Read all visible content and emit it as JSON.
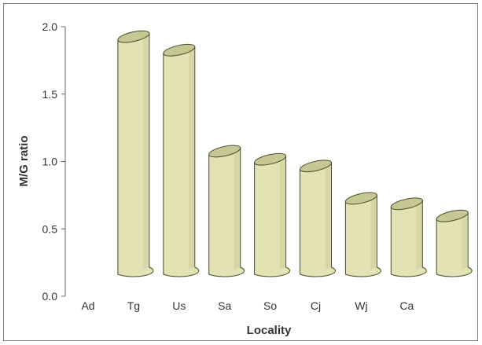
{
  "chart_data": {
    "type": "bar",
    "title": "",
    "xlabel": "Locality",
    "ylabel": "M/G ratio",
    "categories": [
      "Ad",
      "Tg",
      "Us",
      "Sa",
      "So",
      "Cj",
      "Wj",
      "Ca",
      ""
    ],
    "values": [
      null,
      1.9,
      1.8,
      1.05,
      0.99,
      0.94,
      0.7,
      0.66,
      0.57
    ],
    "ylim": [
      0.0,
      2.0
    ],
    "yticks": [
      "0.0",
      "0.5",
      "1.0",
      "1.5",
      "2.0"
    ],
    "grid": false,
    "legend": "none",
    "bar_style": "3d-cylinder",
    "colors": {
      "bar_body": "#e2e2b4",
      "bar_top": "#c7c794",
      "bar_stroke": "#4a4a2a",
      "axis": "#666666"
    }
  }
}
